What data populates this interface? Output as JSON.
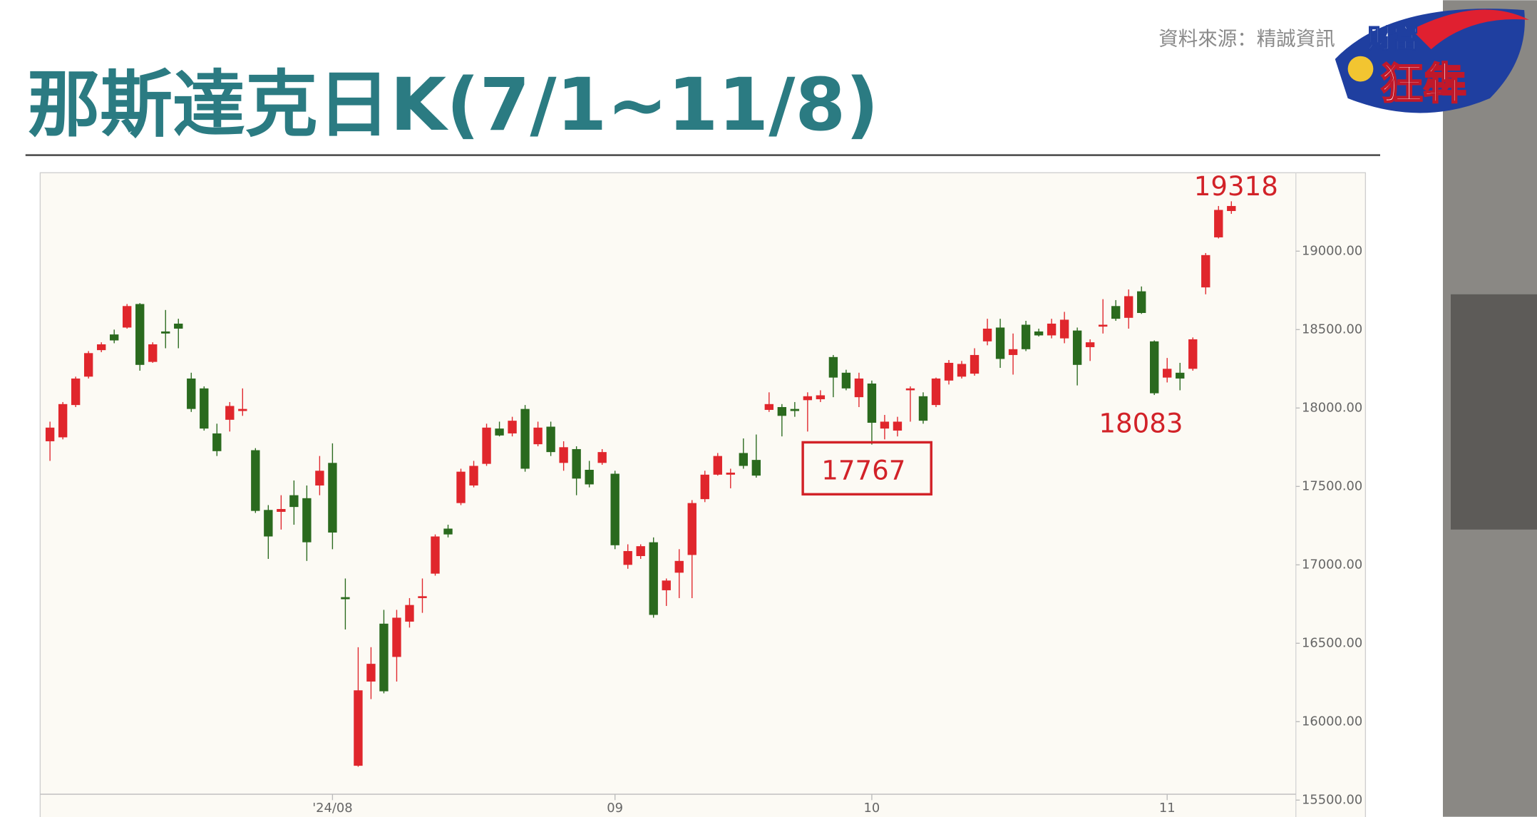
{
  "source": "資料來源：精誠資訊",
  "logo": {
    "top": "財富",
    "bottom": "狂犇"
  },
  "chart_data": {
    "type": "candlestick",
    "title": "那斯達克日K(7/1~11/8)",
    "categories": [
      null,
      null,
      null,
      null,
      null,
      null,
      null,
      null,
      null,
      null,
      null,
      null,
      null,
      null,
      null,
      null,
      null,
      null,
      null,
      null,
      null,
      null,
      "'24/08",
      null,
      null,
      null,
      null,
      null,
      null,
      null,
      null,
      null,
      null,
      null,
      null,
      null,
      null,
      null,
      null,
      null,
      null,
      null,
      null,
      null,
      "09",
      null,
      null,
      null,
      null,
      null,
      null,
      null,
      null,
      null,
      null,
      null,
      null,
      null,
      null,
      null,
      null,
      null,
      null,
      null,
      "10",
      null,
      null,
      null,
      null,
      null,
      null,
      null,
      null,
      null,
      null,
      null,
      null,
      null,
      null,
      null,
      null,
      null,
      null,
      null,
      null,
      null,
      null,
      "11",
      null,
      null,
      null,
      null,
      null
    ],
    "open": [
      17788,
      17813,
      18019,
      18200,
      18369,
      18469,
      18513,
      18663,
      18294,
      18488,
      18538,
      18188,
      18125,
      17838,
      17925,
      17981,
      17731,
      17350,
      17338,
      17444,
      17425,
      17506,
      17650,
      16794,
      15719,
      16256,
      16625,
      16413,
      16638,
      16788,
      16944,
      17231,
      17394,
      17506,
      17644,
      17869,
      17838,
      17994,
      17769,
      17881,
      17650,
      17738,
      17606,
      17650,
      17581,
      17000,
      17056,
      17144,
      16838,
      16950,
      17063,
      17419,
      17575,
      17575,
      17713,
      17669,
      17988,
      18006,
      17994,
      18050,
      18056,
      18325,
      18225,
      18069,
      18156,
      17869,
      17856,
      18113,
      18075,
      18019,
      18175,
      18200,
      18219,
      18425,
      18513,
      18338,
      18531,
      18488,
      18463,
      18444,
      18494,
      18388,
      18519,
      18650,
      18575,
      18744,
      18425,
      18194,
      18225,
      18250,
      18769,
      19088,
      19256
    ],
    "high": [
      17913,
      18038,
      18200,
      18363,
      18419,
      18500,
      18663,
      18669,
      18419,
      18625,
      18569,
      18225,
      18138,
      17900,
      18038,
      18125,
      17744,
      17381,
      17444,
      17538,
      17506,
      17694,
      17775,
      16913,
      16475,
      16475,
      16713,
      16713,
      16788,
      16913,
      17194,
      17256,
      17613,
      17663,
      17900,
      17913,
      17944,
      18019,
      17913,
      17913,
      17788,
      17756,
      17663,
      17738,
      17600,
      17131,
      17131,
      17175,
      16913,
      17100,
      17413,
      17600,
      17713,
      17613,
      17806,
      17831,
      18100,
      18025,
      18038,
      18100,
      18113,
      18338,
      18244,
      18225,
      18175,
      17956,
      17944,
      18138,
      18100,
      18194,
      18306,
      18300,
      18381,
      18569,
      18569,
      18475,
      18556,
      18506,
      18569,
      18613,
      18513,
      18438,
      18694,
      18688,
      18756,
      18775,
      18431,
      18319,
      18288,
      18450,
      18988,
      19288,
      19318
    ],
    "low": [
      17663,
      17800,
      18006,
      18188,
      18356,
      18413,
      18506,
      18238,
      18288,
      18381,
      18381,
      17975,
      17856,
      17694,
      17850,
      17950,
      17331,
      17038,
      17225,
      17256,
      17025,
      17444,
      17100,
      16588,
      15713,
      16144,
      16181,
      16256,
      16600,
      16694,
      16931,
      17175,
      17381,
      17494,
      17631,
      17819,
      17819,
      17594,
      17756,
      17694,
      17600,
      17444,
      17494,
      17638,
      17100,
      16975,
      17038,
      16663,
      16738,
      16788,
      16788,
      17400,
      17569,
      17488,
      17613,
      17556,
      17975,
      17819,
      17944,
      17850,
      18038,
      18069,
      18113,
      18006,
      17767,
      17800,
      17819,
      17913,
      17900,
      18006,
      18150,
      18188,
      18206,
      18400,
      18256,
      18213,
      18363,
      18456,
      18444,
      18413,
      18144,
      18300,
      18475,
      18556,
      18506,
      18600,
      18083,
      18163,
      18113,
      18238,
      18725,
      19081,
      19238
    ],
    "close": [
      17875,
      18025,
      18188,
      18350,
      18406,
      18431,
      18650,
      18275,
      18406,
      18475,
      18506,
      17994,
      17869,
      17725,
      18013,
      17994,
      17344,
      17181,
      17356,
      17369,
      17144,
      17600,
      17206,
      16781,
      16200,
      16369,
      16194,
      16663,
      16744,
      16800,
      17181,
      17194,
      17594,
      17631,
      17875,
      17825,
      17919,
      17613,
      17875,
      17719,
      17750,
      17550,
      17513,
      17719,
      17125,
      17088,
      17119,
      16681,
      16900,
      17025,
      17394,
      17575,
      17694,
      17588,
      17631,
      17569,
      18025,
      17950,
      17981,
      18075,
      18081,
      18194,
      18125,
      18188,
      17906,
      17913,
      17913,
      18125,
      17919,
      18188,
      18288,
      18281,
      18338,
      18506,
      18313,
      18375,
      18375,
      18463,
      18538,
      18563,
      18275,
      18419,
      18531,
      18569,
      18713,
      18606,
      18094,
      18250,
      18188,
      18438,
      18975,
      19263,
      19288
    ],
    "colors": {
      "up": "#e0262c",
      "down": "#2a6a1e"
    },
    "ylim": [
      15500,
      19500
    ],
    "yticks": [
      {
        "value": 15500,
        "label": "15500.00"
      },
      {
        "value": 16000,
        "label": "16000.00"
      },
      {
        "value": 16500,
        "label": "16500.00"
      },
      {
        "value": 17000,
        "label": "17000.00"
      },
      {
        "value": 17500,
        "label": "17500.00"
      },
      {
        "value": 18000,
        "label": "18000.00"
      },
      {
        "value": 18500,
        "label": "18500.00"
      },
      {
        "value": 19000,
        "label": "19000.00"
      }
    ],
    "annotations": [
      "19318",
      "17767",
      "18083"
    ]
  }
}
